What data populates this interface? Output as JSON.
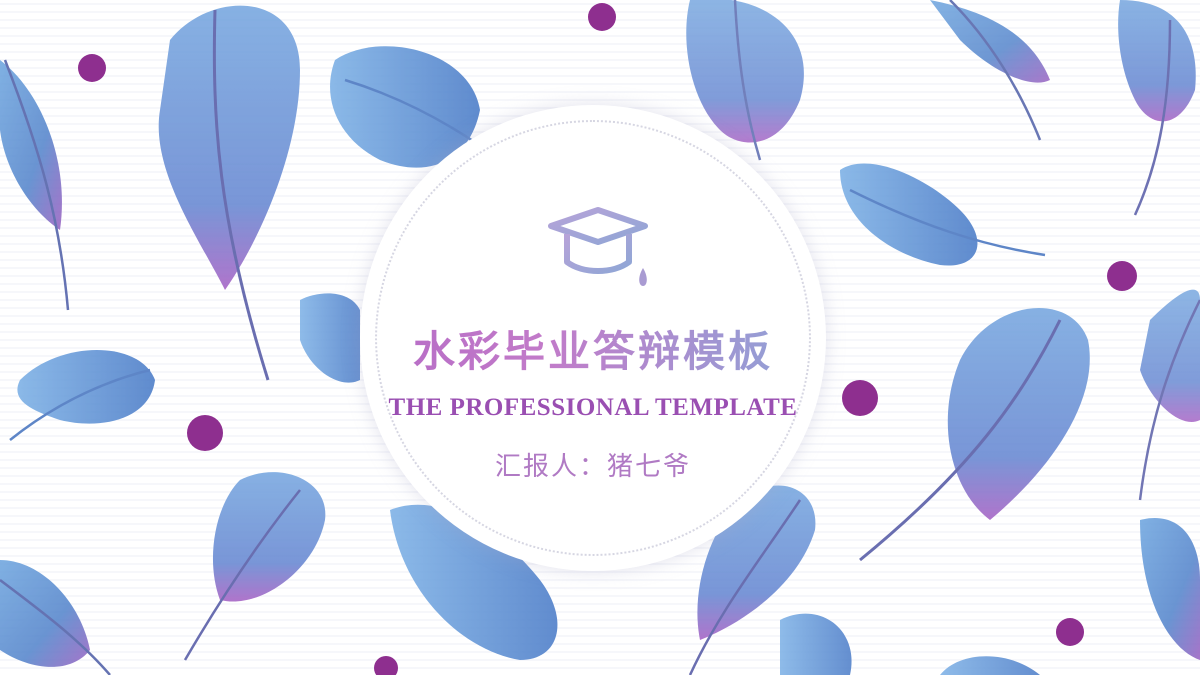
{
  "slide": {
    "title": "水彩毕业答辩模板",
    "subtitle": "THE PROFESSIONAL TEMPLATE",
    "reporter": "汇报人：猪七爷",
    "icon": "graduation-cap-icon",
    "background_decoration": "watercolor-feathers"
  },
  "colors": {
    "feather_blue": "#5b8fd0",
    "feather_purple": "#9b5fc0",
    "ink_splat": "#8e2f8f",
    "title_gradient_start": "#b56ac6",
    "title_gradient_end": "#8aa7d8",
    "subtitle": "#9a4fb2"
  }
}
